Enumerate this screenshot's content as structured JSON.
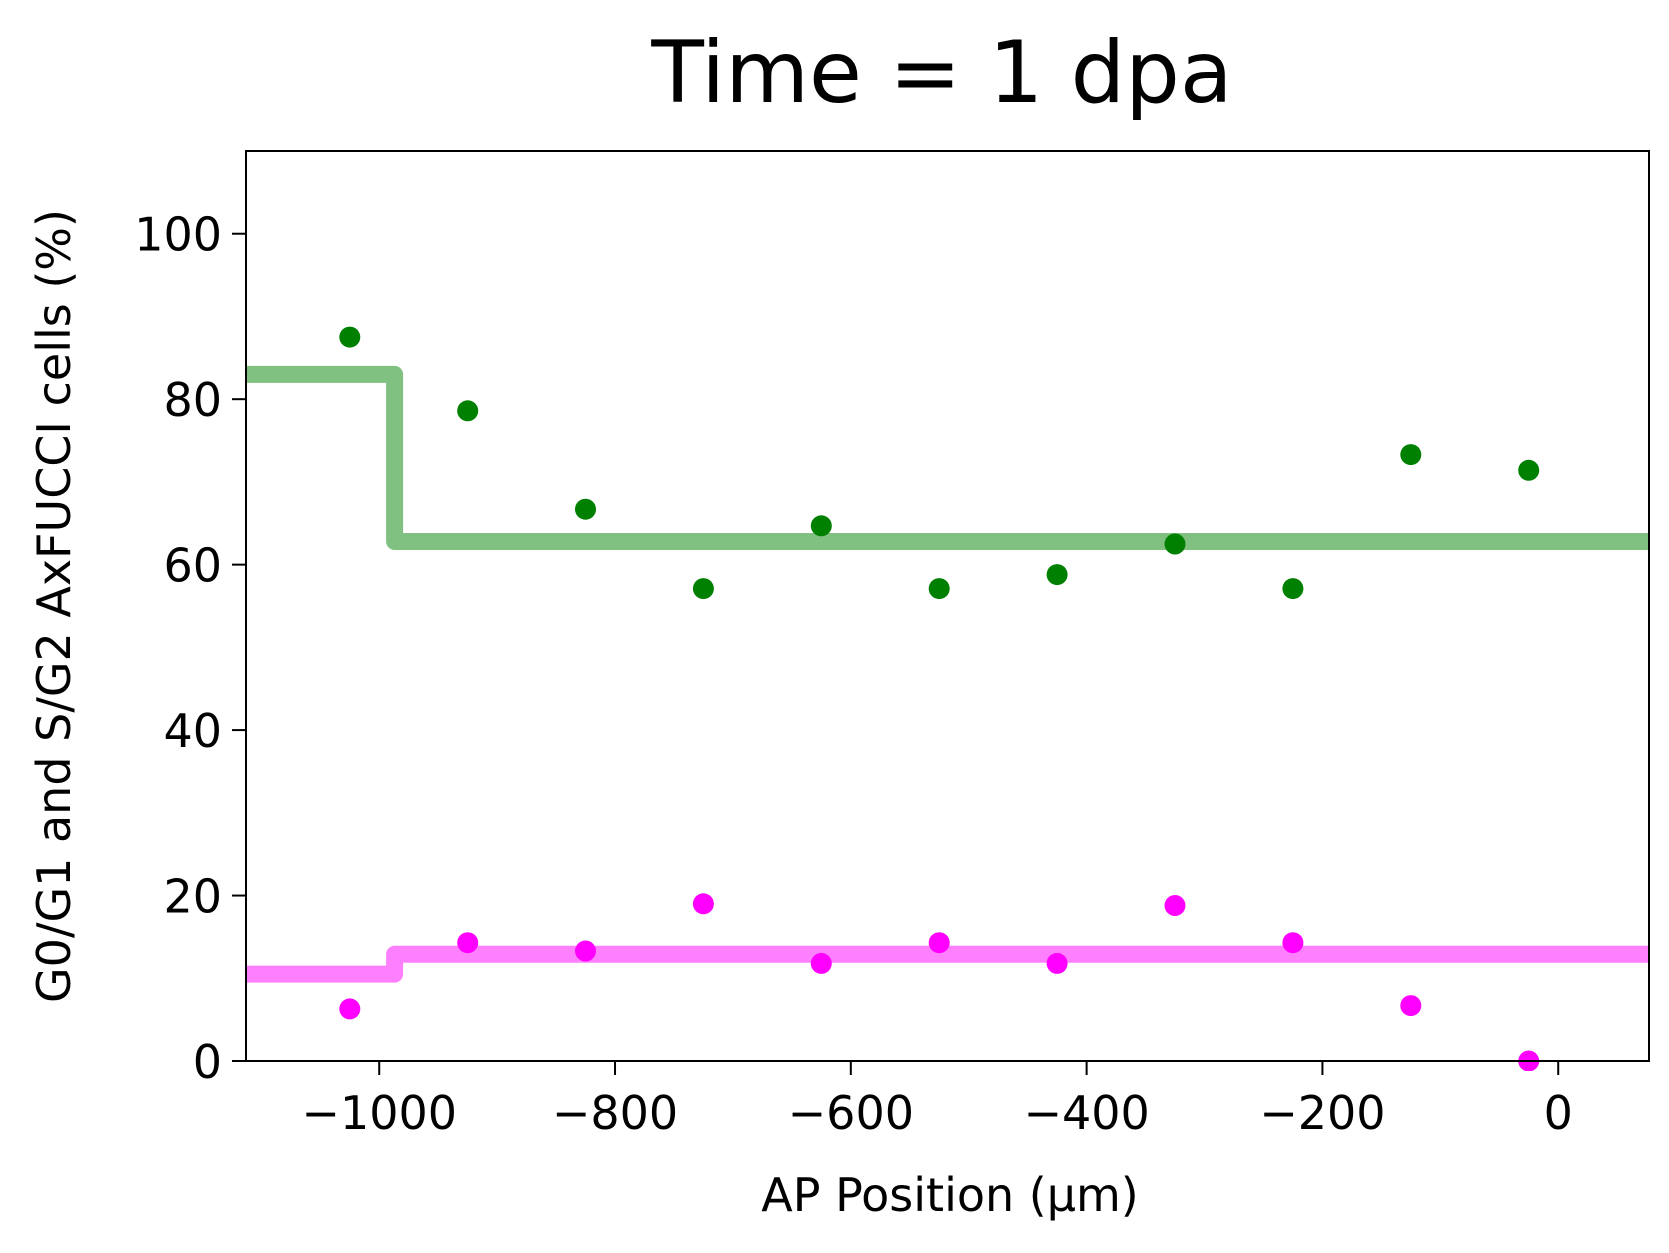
{
  "chart_data": {
    "type": "scatter",
    "title": "Time = 1 dpa",
    "xlabel": "AP Position (μm)",
    "ylabel": "G0/G1 and S/G2 AxFUCCI cells (%)",
    "xlim": [
      -1113,
      77
    ],
    "ylim": [
      0,
      110
    ],
    "xticks": [
      -1000,
      -800,
      -600,
      -400,
      -200,
      0
    ],
    "xtick_labels": [
      "−1000",
      "−800",
      "−600",
      "−400",
      "−200",
      "0"
    ],
    "yticks": [
      0,
      20,
      40,
      60,
      80,
      100
    ],
    "ytick_labels": [
      "0",
      "20",
      "40",
      "60",
      "80",
      "100"
    ],
    "grid": false,
    "legend": "none",
    "series": [
      {
        "marker": "dot",
        "color": "#008000",
        "x": [
          -1025,
          -925,
          -825,
          -725,
          -625,
          -525,
          -425,
          -325,
          -225,
          -125,
          -25
        ],
        "y": [
          87.5,
          78.6,
          66.7,
          57.1,
          64.7,
          57.1,
          58.8,
          62.5,
          57.1,
          73.3,
          71.4
        ]
      },
      {
        "marker": "dot",
        "color": "#ff00ff",
        "x": [
          -1025,
          -925,
          -825,
          -725,
          -625,
          -525,
          -425,
          -325,
          -225,
          -125,
          -25
        ],
        "y": [
          6.3,
          14.3,
          13.3,
          19.0,
          11.8,
          14.3,
          11.8,
          18.8,
          14.3,
          6.7,
          0.0
        ]
      },
      {
        "marker": "step",
        "color": "#80c080",
        "x": [
          -1113,
          -987,
          -987,
          77
        ],
        "y": [
          83.0,
          83.0,
          62.8,
          62.8
        ]
      },
      {
        "marker": "step",
        "color": "#ff80ff",
        "x": [
          -1113,
          -987,
          -987,
          77
        ],
        "y": [
          10.5,
          10.5,
          12.9,
          12.9
        ]
      }
    ]
  }
}
